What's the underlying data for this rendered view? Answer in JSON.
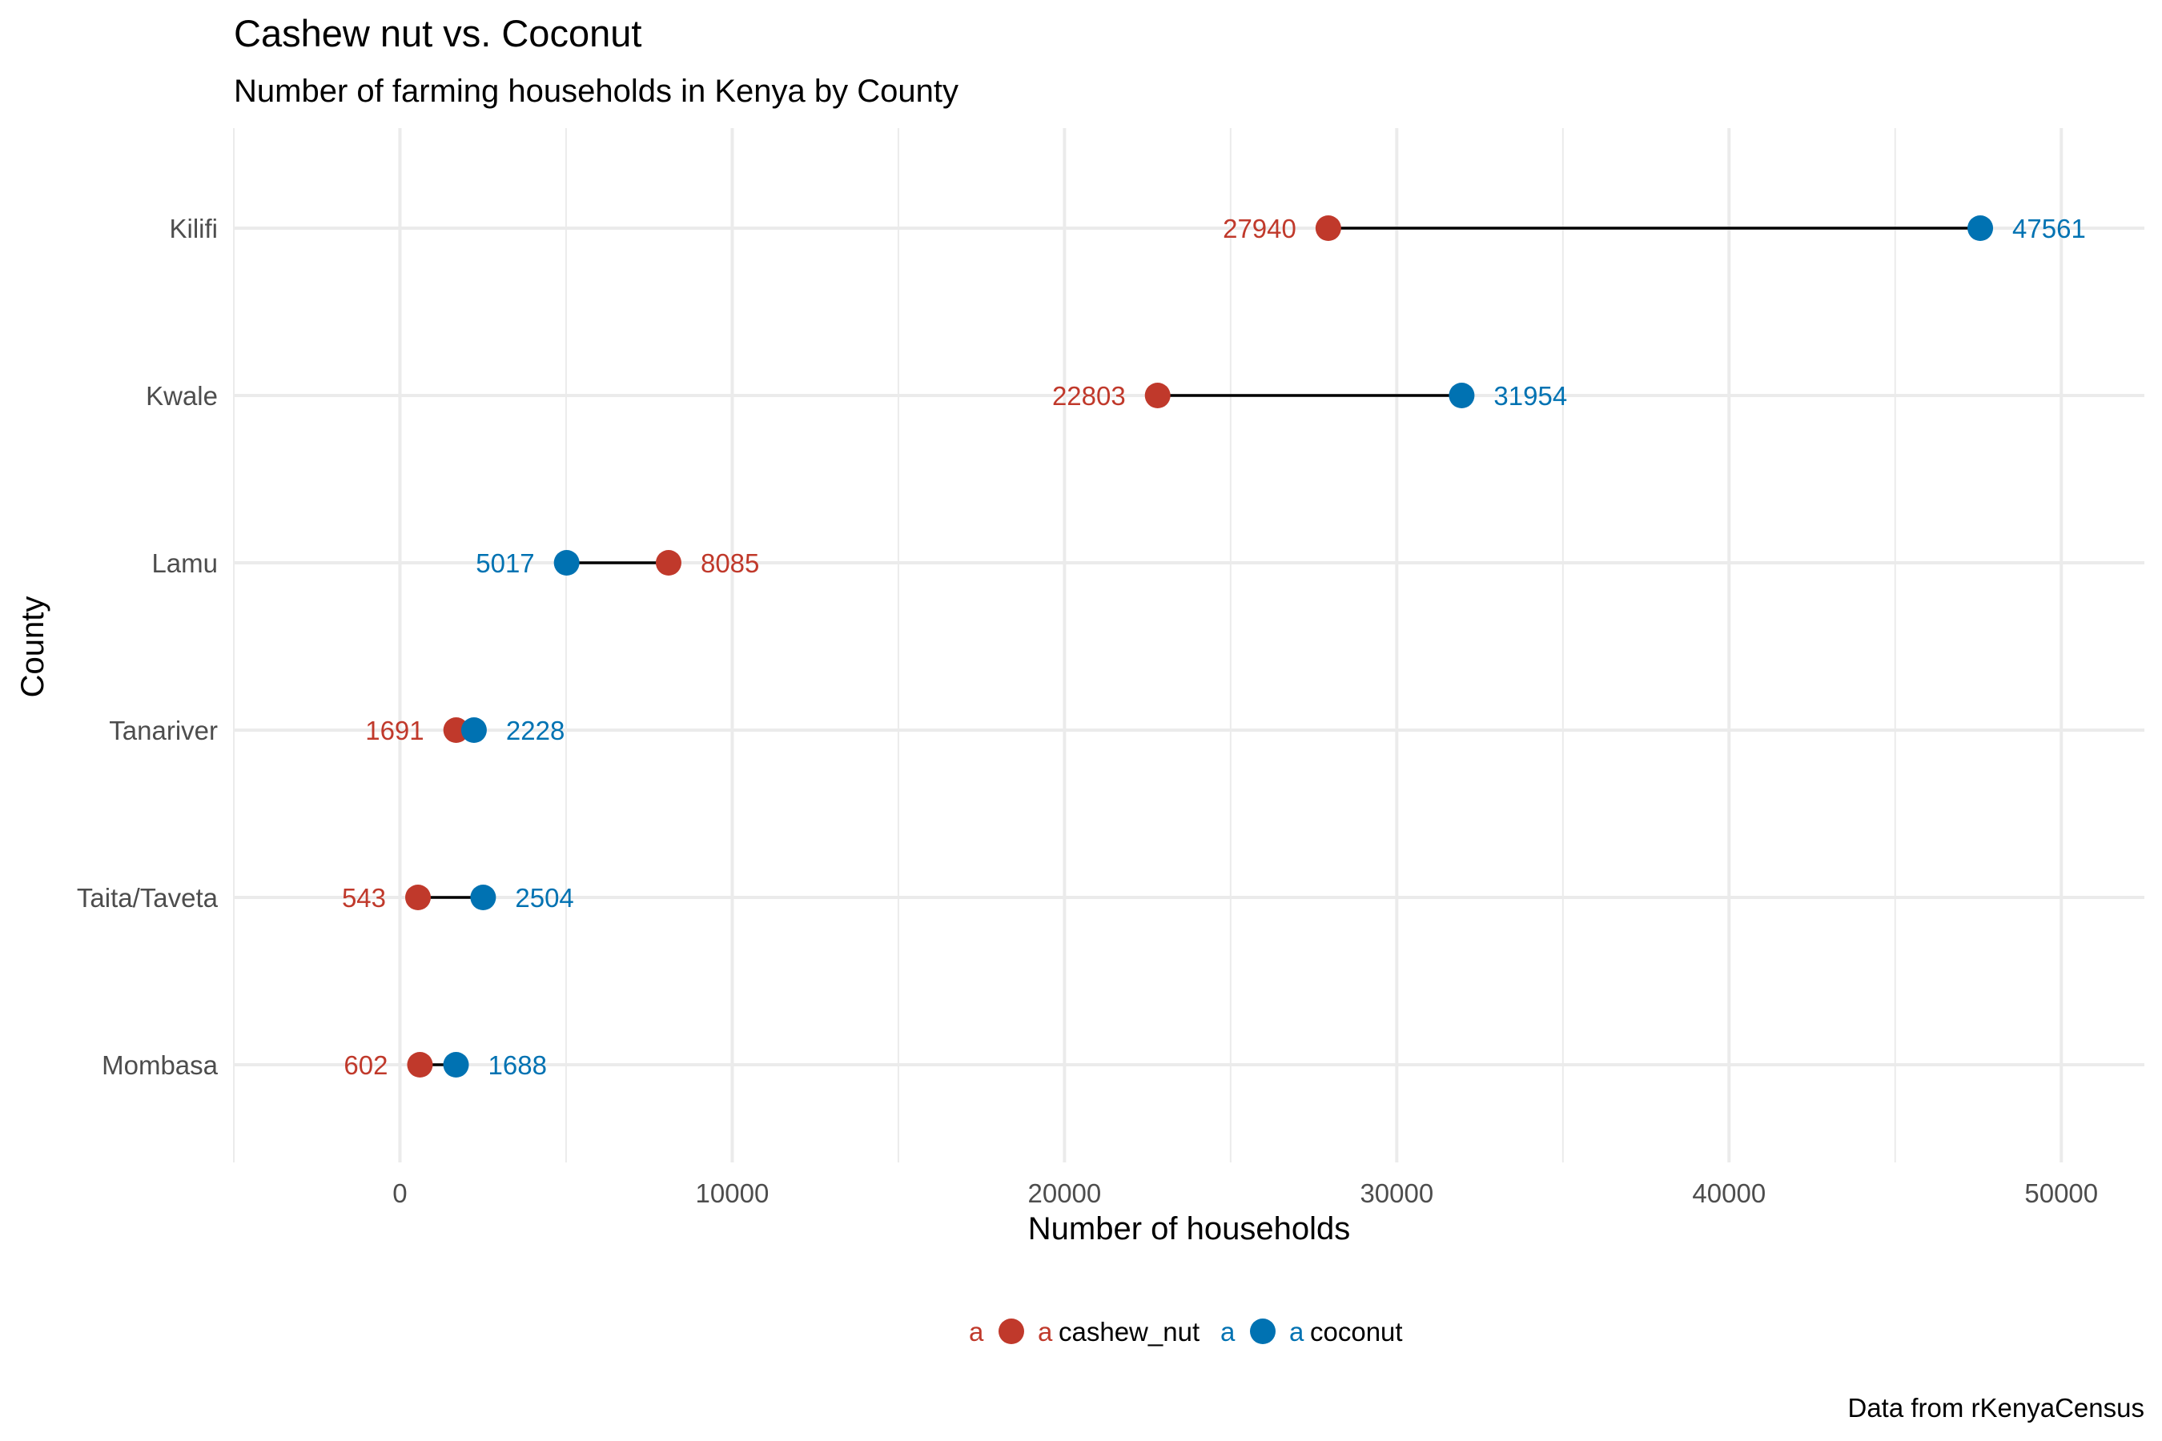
{
  "chart_data": {
    "type": "dumbbell",
    "title": "Cashew nut vs. Coconut",
    "subtitle": "Number of farming households in Kenya by County",
    "xlabel": "Number of households",
    "ylabel": "County",
    "caption": "Data from rKenyaCensus",
    "xlim": [
      -5000,
      52500
    ],
    "x_ticks": [
      0,
      10000,
      20000,
      30000,
      40000,
      50000
    ],
    "x_tick_labels": [
      "0",
      "10000",
      "20000",
      "30000",
      "40000",
      "50000"
    ],
    "grid": true,
    "legend_position": "bottom",
    "categories": [
      "Kilifi",
      "Kwale",
      "Lamu",
      "Tanariver",
      "Taita/Taveta",
      "Mombasa"
    ],
    "series": [
      {
        "name": "cashew_nut",
        "color": "#c0392b",
        "values": [
          27940,
          22803,
          8085,
          1691,
          543,
          602
        ]
      },
      {
        "name": "coconut",
        "color": "#0072b2",
        "values": [
          47561,
          31954,
          5017,
          2228,
          2504,
          1688
        ]
      }
    ],
    "legend": {
      "key_glyph": "a"
    }
  }
}
